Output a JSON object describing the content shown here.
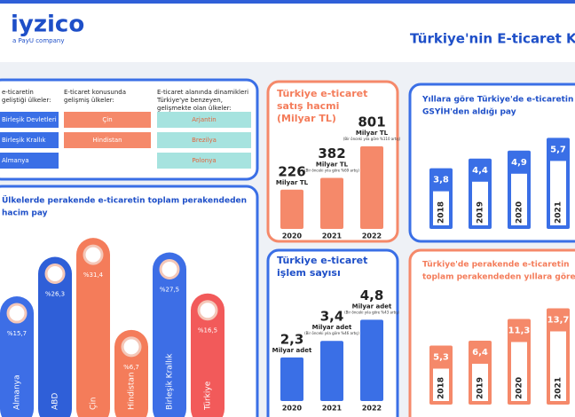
{
  "header": {
    "logo": "iyzico",
    "logo_sub": "a PayU company",
    "title": "Türkiye'nin E-ticaret Ka"
  },
  "countries": {
    "columns": [
      {
        "title": [
          "e-ticaretin",
          "geliştiği ülkeler:"
        ],
        "items": [
          "Birleşik Devletleri",
          "Birleşik Krallık",
          "Almanya"
        ]
      },
      {
        "title": [
          "E-ticaret konusunda",
          "gelişmiş ülkeler:"
        ],
        "items": [
          "Çin",
          "Hindistan"
        ]
      },
      {
        "title": [
          "E-ticaret alanında dinamikleri",
          "Türkiye'ye benzeyen,",
          "gelişmekte olan ülkeler:"
        ],
        "items": [
          "Arjantin",
          "Brezilya",
          "Polonya"
        ]
      }
    ]
  },
  "chart_data": [
    {
      "type": "bar",
      "title": [
        "Ülkelerde perakende e-ticaretin toplam perakendeden",
        "hacim pay"
      ],
      "categories": [
        "Almanya",
        "ABD",
        "Çin",
        "Hindistan",
        "Birleşik Krallık",
        "Türkiye"
      ],
      "values": [
        15.7,
        26.3,
        31.4,
        6.7,
        27.5,
        16.5
      ],
      "value_labels": [
        "%15,7",
        "%26,3",
        "%31,4",
        "%6,7",
        "%27,5",
        "%16,5"
      ],
      "colors": [
        "#3d6ee6",
        "#2f5fd8",
        "#f47c5a",
        "#f47c5a",
        "#3d6ee6",
        "#f25a5a"
      ]
    },
    {
      "type": "bar",
      "title": [
        "Türkiye e-ticaret",
        "satış hacmi",
        "(Milyar TL)"
      ],
      "categories": [
        "2020",
        "2021",
        "2022"
      ],
      "values": [
        226,
        382,
        801
      ],
      "unit": "Milyar TL",
      "notes": [
        null,
        "(Bir önceki yıla göre %69 artış)",
        "(Bir önceki yıla göre %110 artış)"
      ],
      "color": "#f5896a"
    },
    {
      "type": "bar",
      "title": [
        "Yıllara göre Türkiye'de e-ticaretin",
        "GSYİH'den aldığı pay"
      ],
      "categories": [
        "2018",
        "2019",
        "2020",
        "2021"
      ],
      "values": [
        3.8,
        4.4,
        4.9,
        5.7
      ],
      "value_labels": [
        "3,8",
        "4,4",
        "4,9",
        "5,7"
      ],
      "color": "#3a6fe6"
    },
    {
      "type": "bar",
      "title": [
        "Türkiye e-ticaret",
        "işlem sayısı"
      ],
      "categories": [
        "2020",
        "2021",
        "2022"
      ],
      "values": [
        2.3,
        3.4,
        4.8
      ],
      "value_labels": [
        "2,3",
        "3,4",
        "4,8"
      ],
      "unit": "Milyar adet",
      "notes": [
        null,
        "(Bir önceki yıla göre %46 artış)",
        "(Bir önceki yıla göre %43 artış)"
      ],
      "color": "#3a6fe6"
    },
    {
      "type": "bar",
      "title": [
        "Türkiye'de perakende e-ticaretin",
        "toplam perakendeden yıllara göre al"
      ],
      "categories": [
        "2018",
        "2019",
        "2020",
        "2021"
      ],
      "values": [
        5.3,
        6.4,
        11.3,
        13.7
      ],
      "value_labels": [
        "5,3",
        "6,4",
        "11,3",
        "13,7"
      ],
      "color": "#f5896a"
    }
  ]
}
